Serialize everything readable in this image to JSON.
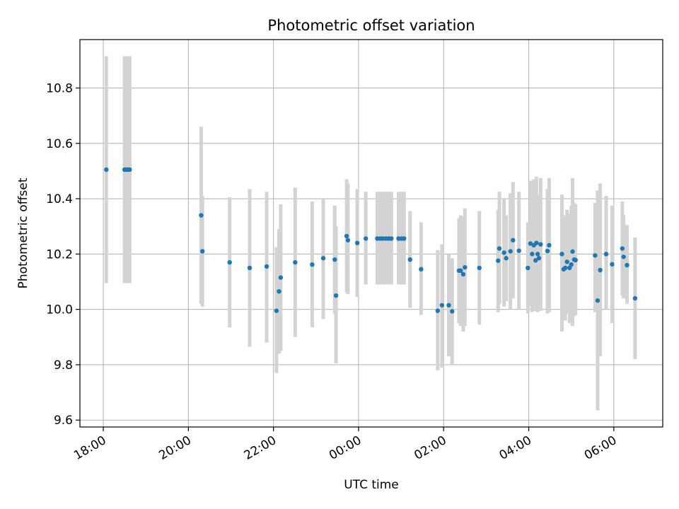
{
  "chart_data": {
    "type": "scatter",
    "title": "Photometric offset variation",
    "xlabel": "UTC time",
    "ylabel": "Photometric offset",
    "x_unit": "hours after 18:00 UTC",
    "xlim": [
      -0.55,
      13.15
    ],
    "ylim": [
      9.575,
      10.975
    ],
    "x_ticks": [
      {
        "value": 0,
        "label": "18:00"
      },
      {
        "value": 2,
        "label": "20:00"
      },
      {
        "value": 4,
        "label": "22:00"
      },
      {
        "value": 6,
        "label": "00:00"
      },
      {
        "value": 8,
        "label": "02:00"
      },
      {
        "value": 10,
        "label": "04:00"
      },
      {
        "value": 12,
        "label": "06:00"
      }
    ],
    "y_ticks": [
      "9.6",
      "9.8",
      "10.0",
      "10.2",
      "10.4",
      "10.6",
      "10.8"
    ],
    "grid": true,
    "marker_color": "#1f77b4",
    "errorbar_color": "#d3d3d3",
    "series": [
      {
        "x": [
          0.07,
          0.5,
          0.53,
          0.56,
          0.59,
          0.62,
          2.3,
          2.33,
          2.97,
          3.44,
          3.84,
          4.07,
          4.13,
          4.17,
          4.51,
          4.91,
          5.17,
          5.44,
          5.47,
          5.72,
          5.75,
          5.97,
          6.17,
          6.44,
          6.51,
          6.57,
          6.64,
          6.71,
          6.77,
          6.94,
          7.01,
          7.07,
          7.21,
          7.47,
          7.86,
          7.96,
          8.12,
          8.2,
          8.36,
          8.4,
          8.46,
          8.5,
          8.84,
          9.28,
          9.31,
          9.42,
          9.47,
          9.57,
          9.63,
          9.77,
          9.98,
          10.04,
          10.08,
          10.12,
          10.16,
          10.18,
          10.21,
          10.24,
          10.28,
          10.44,
          10.48,
          10.78,
          10.82,
          10.86,
          10.9,
          10.96,
          11.0,
          11.03,
          11.07,
          11.1,
          11.56,
          11.62,
          11.68,
          11.82,
          11.96,
          12.2,
          12.23,
          12.31,
          12.5
        ],
        "y": [
          10.505,
          10.505,
          10.505,
          10.505,
          10.505,
          10.505,
          10.34,
          10.21,
          10.17,
          10.15,
          10.155,
          9.995,
          10.065,
          10.115,
          10.17,
          10.162,
          10.185,
          10.18,
          10.05,
          10.265,
          10.25,
          10.24,
          10.256,
          10.256,
          10.256,
          10.256,
          10.256,
          10.256,
          10.256,
          10.256,
          10.256,
          10.256,
          10.18,
          10.145,
          9.995,
          10.015,
          10.015,
          9.993,
          10.14,
          10.14,
          10.127,
          10.152,
          10.15,
          10.176,
          10.22,
          10.205,
          10.185,
          10.21,
          10.25,
          10.212,
          10.15,
          10.238,
          10.2,
          10.232,
          10.177,
          10.24,
          10.2,
          10.185,
          10.235,
          10.211,
          10.232,
          10.2,
          10.145,
          10.15,
          10.172,
          10.15,
          10.162,
          10.209,
          10.18,
          10.178,
          10.195,
          10.032,
          10.142,
          10.2,
          10.163,
          10.22,
          10.19,
          10.16,
          10.04
        ],
        "y_lower": [
          10.095,
          10.095,
          10.095,
          10.095,
          10.095,
          10.095,
          10.02,
          10.01,
          9.935,
          9.865,
          9.88,
          9.77,
          9.84,
          9.85,
          9.9,
          9.935,
          9.965,
          9.985,
          9.805,
          10.06,
          10.055,
          10.045,
          10.09,
          10.09,
          10.09,
          10.09,
          10.09,
          10.09,
          10.09,
          10.09,
          10.09,
          10.09,
          10.005,
          9.98,
          9.78,
          9.79,
          9.83,
          9.8,
          9.95,
          9.94,
          9.92,
          9.94,
          9.945,
          9.99,
          10.02,
          10.01,
          10.03,
          10.0,
          10.04,
          10.0,
          9.985,
          10.01,
          9.99,
          9.995,
          9.995,
          10.0,
          9.99,
          10.005,
          9.995,
          9.985,
          9.99,
          9.92,
          9.97,
          9.96,
          9.985,
          9.95,
          9.95,
          9.94,
          9.975,
          9.98,
          9.99,
          9.635,
          9.83,
          10.0,
          9.95,
          10.05,
          10.04,
          10.02,
          9.82
        ],
        "y_upper": [
          10.915,
          10.915,
          10.915,
          10.915,
          10.915,
          10.915,
          10.66,
          10.41,
          10.405,
          10.435,
          10.425,
          10.225,
          10.29,
          10.38,
          10.44,
          10.39,
          10.4,
          10.375,
          10.3,
          10.47,
          10.455,
          10.435,
          10.425,
          10.425,
          10.425,
          10.425,
          10.425,
          10.425,
          10.425,
          10.425,
          10.425,
          10.425,
          10.355,
          10.315,
          10.215,
          10.235,
          10.2,
          10.185,
          10.33,
          10.34,
          10.335,
          10.365,
          10.355,
          10.36,
          10.425,
          10.4,
          10.34,
          10.42,
          10.46,
          10.425,
          10.315,
          10.465,
          10.41,
          10.47,
          10.355,
          10.48,
          10.415,
          10.38,
          10.475,
          10.435,
          10.475,
          10.415,
          10.32,
          10.34,
          10.36,
          10.345,
          10.375,
          10.475,
          10.385,
          10.38,
          10.385,
          10.43,
          10.455,
          10.41,
          10.375,
          10.39,
          10.34,
          10.305,
          10.26
        ]
      }
    ]
  }
}
